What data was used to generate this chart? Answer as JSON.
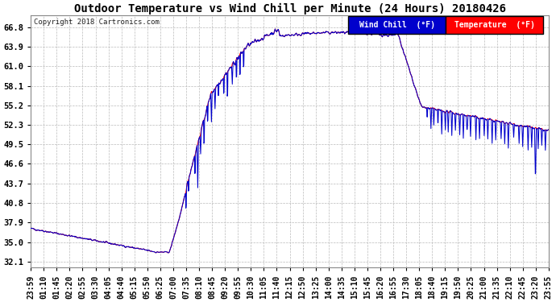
{
  "title": "Outdoor Temperature vs Wind Chill per Minute (24 Hours) 20180426",
  "copyright": "Copyright 2018 Cartronics.com",
  "legend_wind_chill": "Wind Chill  (°F)",
  "legend_temperature": "Temperature  (°F)",
  "yticks": [
    32.1,
    35.0,
    37.9,
    40.8,
    43.7,
    46.6,
    49.5,
    52.3,
    55.2,
    58.1,
    61.0,
    63.9,
    66.8
  ],
  "ylim": [
    31.2,
    68.5
  ],
  "background_color": "#ffffff",
  "plot_bg_color": "#ffffff",
  "temp_color": "#ff0000",
  "wind_chill_color": "#0000cc",
  "legend_wind_bg": "#0000cc",
  "legend_temp_bg": "#ff0000",
  "grid_color": "#bbbbbb",
  "title_fontsize": 10,
  "tick_fontsize": 7.5,
  "copyright_fontsize": 6.5
}
